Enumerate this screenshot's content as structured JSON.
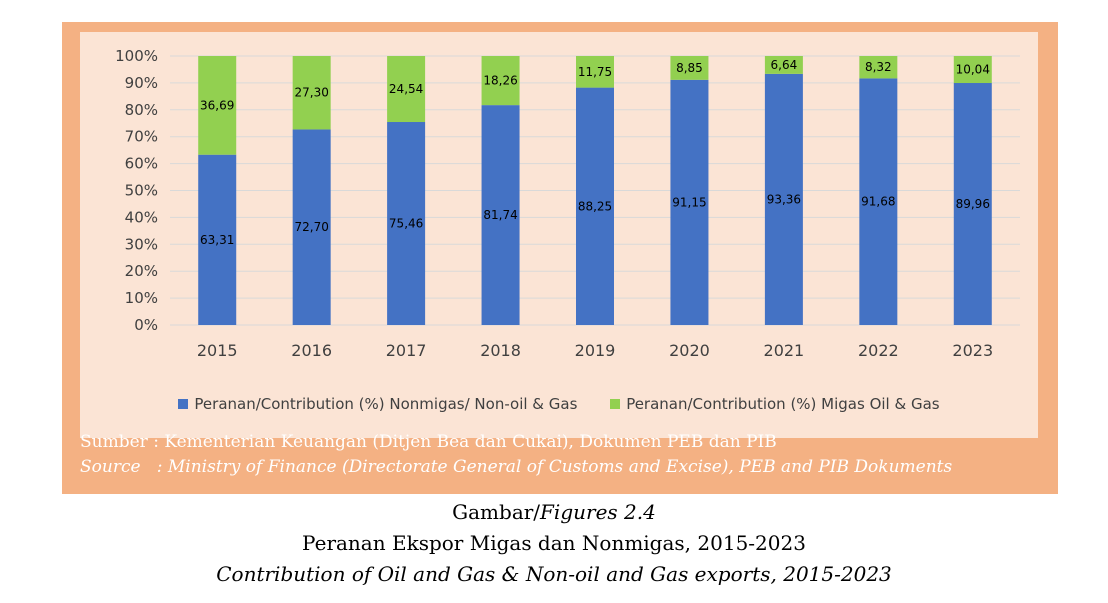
{
  "chart_data": {
    "type": "bar",
    "stacked": true,
    "categories": [
      "2015",
      "2016",
      "2017",
      "2018",
      "2019",
      "2020",
      "2021",
      "2022",
      "2023"
    ],
    "series": [
      {
        "name": "Peranan/Contribution (%) Nonmigas/ Non-oil & Gas",
        "color": "#4472c4",
        "values": [
          63.31,
          72.7,
          75.46,
          81.74,
          88.25,
          91.15,
          93.36,
          91.68,
          89.96
        ],
        "labels": [
          "63,31",
          "72,70",
          "75,46",
          "81,74",
          "88,25",
          "91,15",
          "93,36",
          "91,68",
          "89,96"
        ]
      },
      {
        "name": "Peranan/Contribution (%) Migas Oil & Gas",
        "color": "#92d050",
        "values": [
          36.69,
          27.3,
          24.54,
          18.26,
          11.75,
          8.85,
          6.64,
          8.32,
          10.04
        ],
        "labels": [
          "36,69",
          "27,30",
          "24,54",
          "18,26",
          "11,75",
          "8,85",
          "6,64",
          "8,32",
          "10,04"
        ]
      }
    ],
    "ylim": [
      0,
      100
    ],
    "yticks": [
      "0%",
      "10%",
      "20%",
      "30%",
      "40%",
      "50%",
      "60%",
      "70%",
      "80%",
      "90%",
      "100%"
    ],
    "grid": true,
    "legend_position": "bottom"
  },
  "source": {
    "line1": "Sumber : Kementerian Keuangan (Ditjen Bea dan Cukai), Dokumen PEB dan PIB",
    "line2": "Source   : Ministry of Finance (Directorate General of Customs and Excise), PEB and PIB Dokuments"
  },
  "caption": {
    "prefix": "Gambar/",
    "figure": "Figures 2.4",
    "title": "Peranan Ekspor Migas dan Nonmigas, 2015-2023",
    "subtitle": "Contribution of Oil and Gas & Non-oil and Gas exports, 2015-2023"
  }
}
